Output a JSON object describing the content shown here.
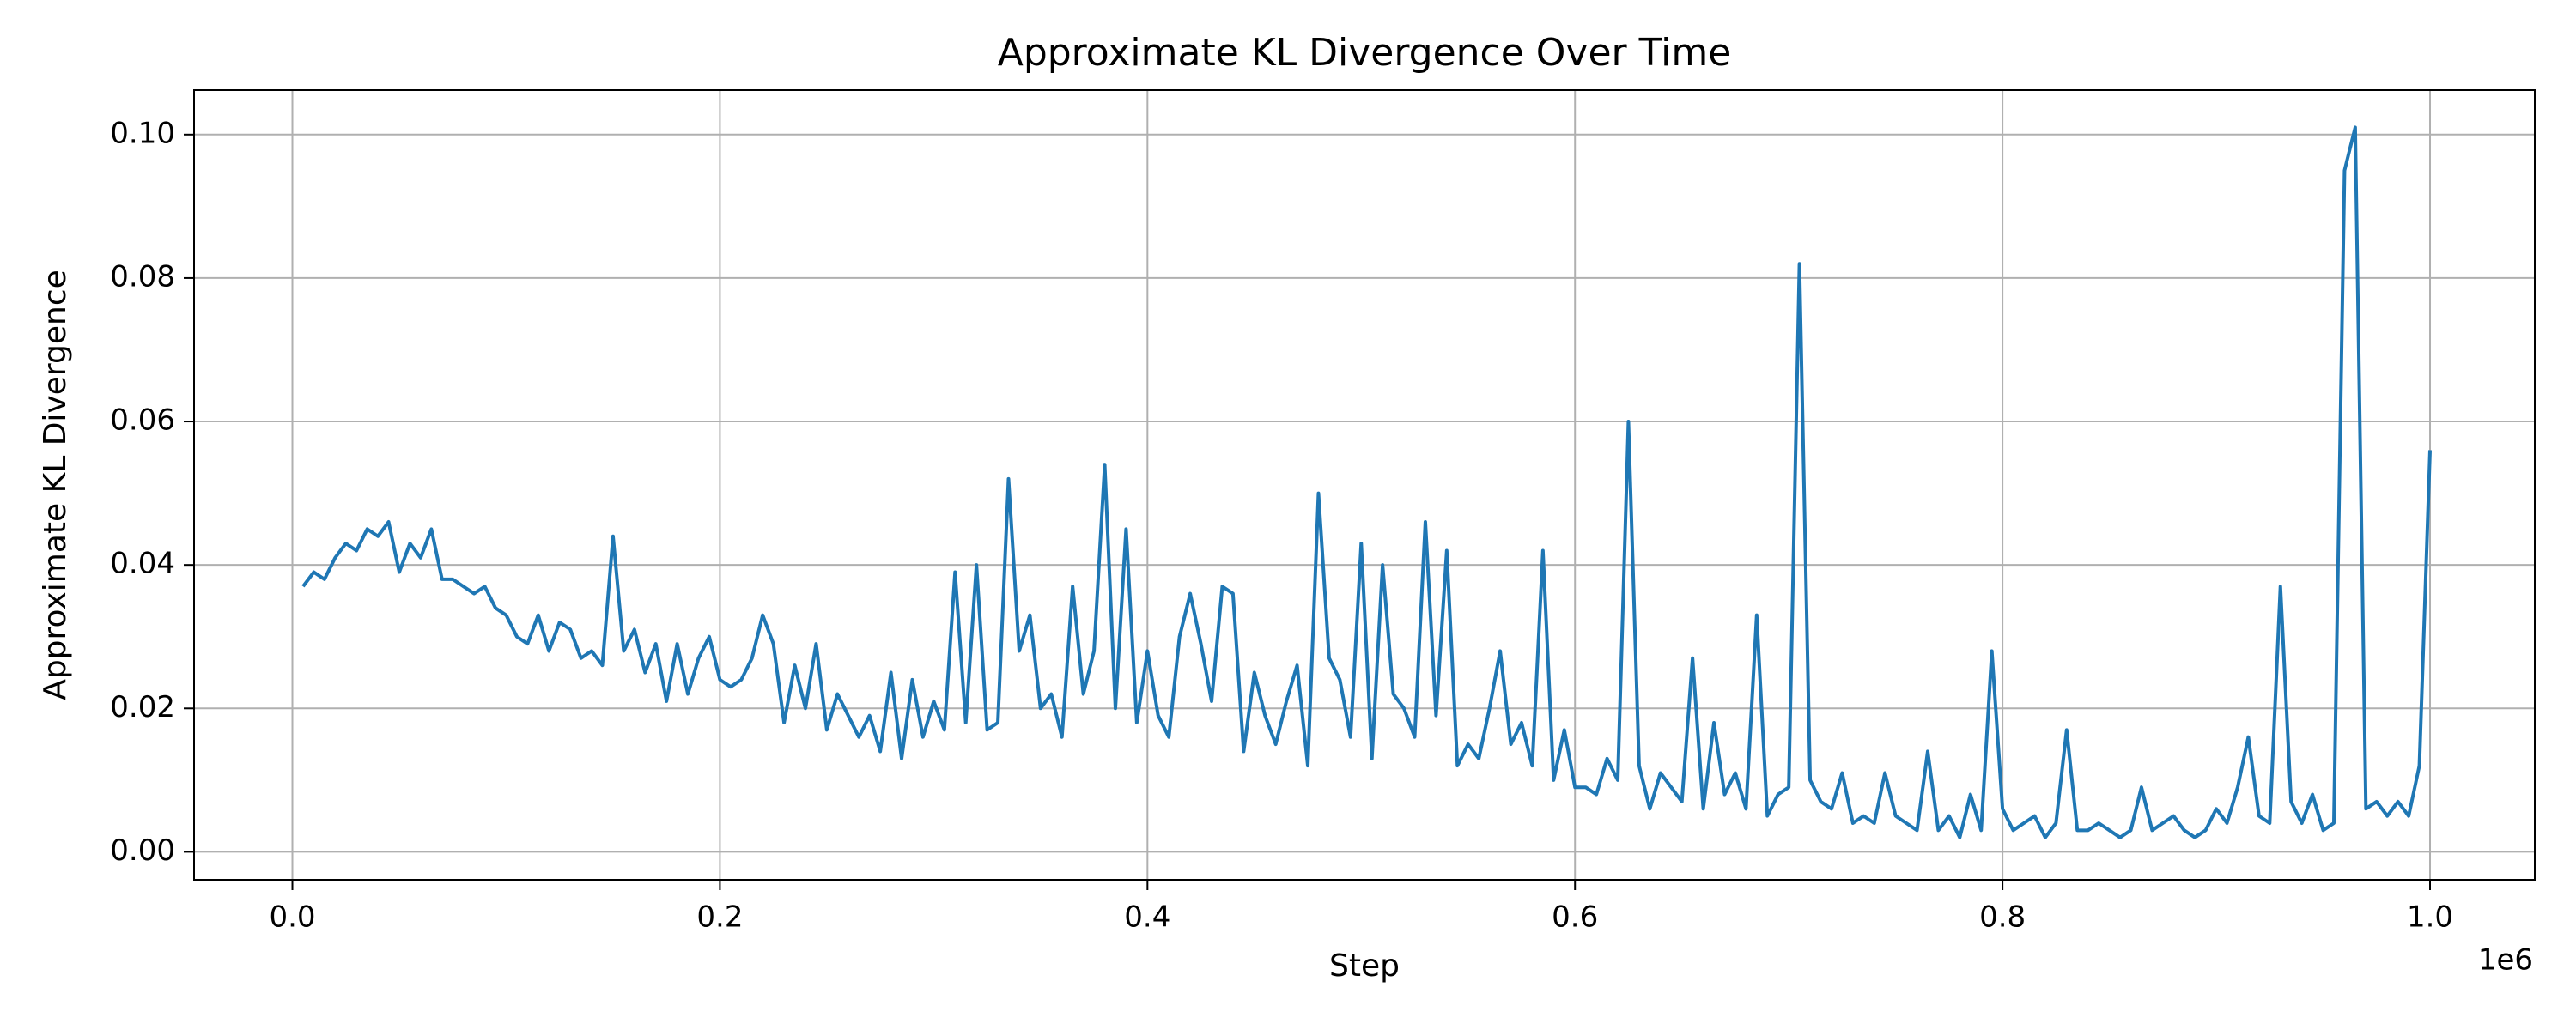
{
  "chart_data": {
    "type": "line",
    "title": "Approximate KL Divergence Over Time",
    "xlabel": "Step",
    "ylabel": "Approximate KL Divergence",
    "x_offset_label": "1e6",
    "color": "#1f77b4",
    "grid": true,
    "xlim": [
      -46000,
      1049000
    ],
    "ylim": [
      -0.0039,
      0.1062
    ],
    "xticks": [
      {
        "value": 0,
        "label": "0.0"
      },
      {
        "value": 200000,
        "label": "0.2"
      },
      {
        "value": 400000,
        "label": "0.4"
      },
      {
        "value": 600000,
        "label": "0.6"
      },
      {
        "value": 800000,
        "label": "0.8"
      },
      {
        "value": 1000000,
        "label": "1.0"
      }
    ],
    "yticks": [
      {
        "value": 0,
        "label": "0.00"
      },
      {
        "value": 0.02,
        "label": "0.02"
      },
      {
        "value": 0.04,
        "label": "0.04"
      },
      {
        "value": 0.06,
        "label": "0.06"
      },
      {
        "value": 0.08,
        "label": "0.08"
      },
      {
        "value": 0.1,
        "label": "0.10"
      }
    ],
    "x": [
      5000,
      10000,
      15000,
      20000,
      25000,
      30000,
      35000,
      40000,
      45000,
      50000,
      55000,
      60000,
      65000,
      70000,
      75000,
      80000,
      85000,
      90000,
      95000,
      100000,
      105000,
      110000,
      115000,
      120000,
      125000,
      130000,
      135000,
      140000,
      145000,
      150000,
      155000,
      160000,
      165000,
      170000,
      175000,
      180000,
      185000,
      190000,
      195000,
      200000,
      205000,
      210000,
      215000,
      220000,
      225000,
      230000,
      235000,
      240000,
      245000,
      250000,
      255000,
      260000,
      265000,
      270000,
      275000,
      280000,
      285000,
      290000,
      295000,
      300000,
      305000,
      310000,
      315000,
      320000,
      325000,
      330000,
      335000,
      340000,
      345000,
      350000,
      355000,
      360000,
      365000,
      370000,
      375000,
      380000,
      385000,
      390000,
      395000,
      400000,
      405000,
      410000,
      415000,
      420000,
      425000,
      430000,
      435000,
      440000,
      445000,
      450000,
      455000,
      460000,
      465000,
      470000,
      475000,
      480000,
      485000,
      490000,
      495000,
      500000,
      505000,
      510000,
      515000,
      520000,
      525000,
      530000,
      535000,
      540000,
      545000,
      550000,
      555000,
      560000,
      565000,
      570000,
      575000,
      580000,
      585000,
      590000,
      595000,
      600000,
      605000,
      610000,
      615000,
      620000,
      625000,
      630000,
      635000,
      640000,
      645000,
      650000,
      655000,
      660000,
      665000,
      670000,
      675000,
      680000,
      685000,
      690000,
      695000,
      700000,
      705000,
      710000,
      715000,
      720000,
      725000,
      730000,
      735000,
      740000,
      745000,
      750000,
      755000,
      760000,
      765000,
      770000,
      775000,
      780000,
      785000,
      790000,
      795000,
      800000,
      805000,
      810000,
      815000,
      820000,
      825000,
      830000,
      835000,
      840000,
      845000,
      850000,
      855000,
      860000,
      865000,
      870000,
      875000,
      880000,
      885000,
      890000,
      895000,
      900000,
      905000,
      910000,
      915000,
      920000,
      925000,
      930000,
      935000,
      940000,
      945000,
      950000,
      955000,
      960000,
      965000,
      970000,
      975000,
      980000,
      985000,
      990000,
      995000,
      1000000
    ],
    "values": [
      0.037,
      0.039,
      0.038,
      0.041,
      0.043,
      0.042,
      0.045,
      0.044,
      0.046,
      0.039,
      0.043,
      0.041,
      0.045,
      0.038,
      0.038,
      0.037,
      0.036,
      0.037,
      0.034,
      0.033,
      0.03,
      0.029,
      0.033,
      0.028,
      0.032,
      0.031,
      0.027,
      0.028,
      0.026,
      0.044,
      0.028,
      0.031,
      0.025,
      0.029,
      0.021,
      0.029,
      0.022,
      0.027,
      0.03,
      0.024,
      0.023,
      0.024,
      0.027,
      0.033,
      0.029,
      0.018,
      0.026,
      0.02,
      0.029,
      0.017,
      0.022,
      0.019,
      0.016,
      0.019,
      0.014,
      0.025,
      0.013,
      0.024,
      0.016,
      0.021,
      0.017,
      0.039,
      0.018,
      0.04,
      0.017,
      0.018,
      0.052,
      0.028,
      0.033,
      0.02,
      0.022,
      0.016,
      0.037,
      0.022,
      0.028,
      0.054,
      0.02,
      0.045,
      0.018,
      0.028,
      0.019,
      0.016,
      0.03,
      0.036,
      0.029,
      0.021,
      0.037,
      0.036,
      0.014,
      0.025,
      0.019,
      0.015,
      0.021,
      0.026,
      0.012,
      0.05,
      0.027,
      0.024,
      0.016,
      0.043,
      0.013,
      0.04,
      0.022,
      0.02,
      0.016,
      0.046,
      0.019,
      0.042,
      0.012,
      0.015,
      0.013,
      0.02,
      0.028,
      0.015,
      0.018,
      0.012,
      0.042,
      0.01,
      0.017,
      0.009,
      0.009,
      0.008,
      0.013,
      0.01,
      0.06,
      0.012,
      0.006,
      0.011,
      0.009,
      0.007,
      0.027,
      0.006,
      0.018,
      0.008,
      0.011,
      0.006,
      0.033,
      0.005,
      0.008,
      0.009,
      0.082,
      0.01,
      0.007,
      0.006,
      0.011,
      0.004,
      0.005,
      0.004,
      0.011,
      0.005,
      0.004,
      0.003,
      0.014,
      0.003,
      0.005,
      0.002,
      0.008,
      0.003,
      0.028,
      0.006,
      0.003,
      0.004,
      0.005,
      0.002,
      0.004,
      0.017,
      0.003,
      0.003,
      0.004,
      0.003,
      0.002,
      0.003,
      0.009,
      0.003,
      0.004,
      0.005,
      0.003,
      0.002,
      0.003,
      0.006,
      0.004,
      0.009,
      0.016,
      0.005,
      0.004,
      0.037,
      0.007,
      0.004,
      0.008,
      0.003,
      0.004,
      0.095,
      0.101,
      0.006,
      0.007,
      0.005,
      0.007,
      0.005,
      0.012,
      0.056
    ]
  }
}
